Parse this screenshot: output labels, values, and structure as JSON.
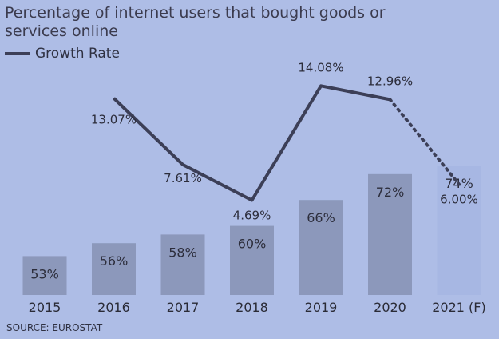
{
  "chart_data": {
    "type": "bar",
    "title": "Percentage of internet users that bought goods or services online",
    "categories": [
      "2015",
      "2016",
      "2017",
      "2018",
      "2019",
      "2020",
      "2021 (F)"
    ],
    "series": [
      {
        "values": [
          53,
          56,
          58,
          60,
          66,
          72,
          74
        ],
        "labels": [
          "53%",
          "56%",
          "58%",
          "60%",
          "66%",
          "72%",
          "74%"
        ],
        "color": "#8c98bb",
        "forecast_color": "#a7b7e3"
      },
      {
        "name": "Growth Rate",
        "type": "line",
        "values": [
          null,
          13.07,
          7.61,
          4.69,
          14.08,
          12.96,
          6.0
        ],
        "labels": [
          "",
          "13.07%",
          "7.61%",
          "4.69%",
          "14.08%",
          "12.96%",
          "6.00%"
        ],
        "color": "#3c3f57",
        "forecast_dotted": true
      }
    ],
    "legend": "top-left",
    "grid": false
  },
  "source": "SOURCE: EUROSTAT",
  "colors": {
    "background": "#aebde6",
    "text": "#2c2d3b"
  }
}
